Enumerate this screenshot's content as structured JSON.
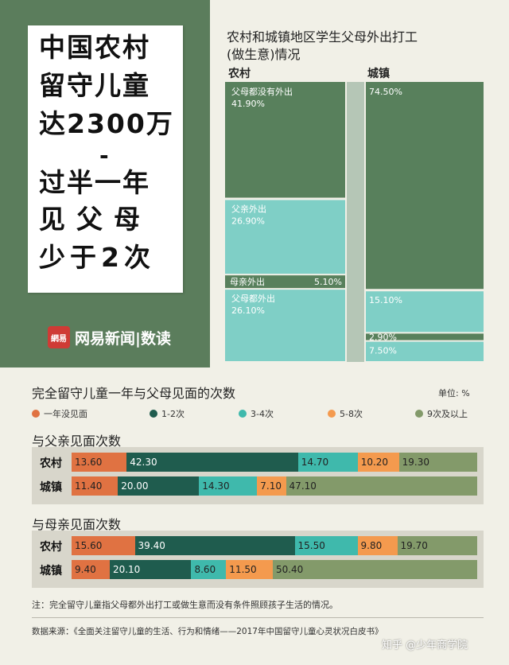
{
  "hero": {
    "lines": [
      "中国农村",
      "留守儿童",
      "达2300万",
      "-",
      "过半一年",
      "见父母",
      "少于2次"
    ],
    "brand": "网易新闻|数读",
    "brand_badge": "網易"
  },
  "top_chart": {
    "title_lines": [
      "农村和城镇地区学生父母外出打工",
      "(做生意)情况"
    ],
    "col_rural": "农村",
    "col_urban": "城镇"
  },
  "chart_data": [
    {
      "type": "bar",
      "title": "农村和城镇地区学生父母外出打工(做生意)情况",
      "stacked": true,
      "categories": [
        "农村",
        "城镇"
      ],
      "series": [
        {
          "name": "父母都没有外出",
          "values": [
            41.9,
            74.5
          ]
        },
        {
          "name": "父亲外出",
          "values": [
            26.9,
            15.1
          ]
        },
        {
          "name": "母亲外出",
          "values": [
            5.1,
            2.9
          ]
        },
        {
          "name": "父母都外出",
          "values": [
            26.1,
            7.5
          ]
        }
      ],
      "value_labels": {
        "rural": [
          "41.90%",
          "26.90%",
          "5.10%",
          "26.10%"
        ],
        "urban": [
          "74.50%",
          "15.10%",
          "2.90%",
          "7.50%"
        ]
      },
      "colors": [
        "#58805c",
        "#7fcfc6",
        "#58805c",
        "#7fcfc6"
      ]
    },
    {
      "type": "bar",
      "title": "完全留守儿童一年与父母见面的次数",
      "unit": "单位: %",
      "stacked": true,
      "legend": [
        "一年没见面",
        "1-2次",
        "3-4次",
        "5-8次",
        "9次及以上"
      ],
      "colors": [
        "#e07242",
        "#1f5c4e",
        "#3fb9ac",
        "#f49a4e",
        "#839a6a"
      ],
      "groups": [
        {
          "name": "与父亲见面次数",
          "rows": [
            {
              "label": "农村",
              "values": [
                13.6,
                42.3,
                14.7,
                10.2,
                19.3
              ],
              "labels": [
                "13.60",
                "42.30",
                "14.70",
                "10.20",
                "19.30"
              ]
            },
            {
              "label": "城镇",
              "values": [
                11.4,
                20.0,
                14.3,
                7.1,
                47.1
              ],
              "labels": [
                "11.40",
                "20.00",
                "14.30",
                "7.10",
                "47.10"
              ]
            }
          ]
        },
        {
          "name": "与母亲见面次数",
          "rows": [
            {
              "label": "农村",
              "values": [
                15.6,
                39.4,
                15.5,
                9.8,
                19.7
              ],
              "labels": [
                "15.60",
                "39.40",
                "15.50",
                "9.80",
                "19.70"
              ]
            },
            {
              "label": "城镇",
              "values": [
                9.4,
                20.1,
                8.6,
                11.5,
                50.4
              ],
              "labels": [
                "9.40",
                "20.10",
                "8.60",
                "11.50",
                "50.40"
              ]
            }
          ]
        }
      ]
    }
  ],
  "bottom": {
    "note": "注：完全留守儿童指父母都外出打工或做生意而没有条件照顾孩子生活的情况。",
    "source": "数据来源：《全面关注留守儿童的生活、行为和情绪——2017年中国留守儿童心灵状况白皮书》",
    "watermark": "知乎 @少年商学院"
  }
}
